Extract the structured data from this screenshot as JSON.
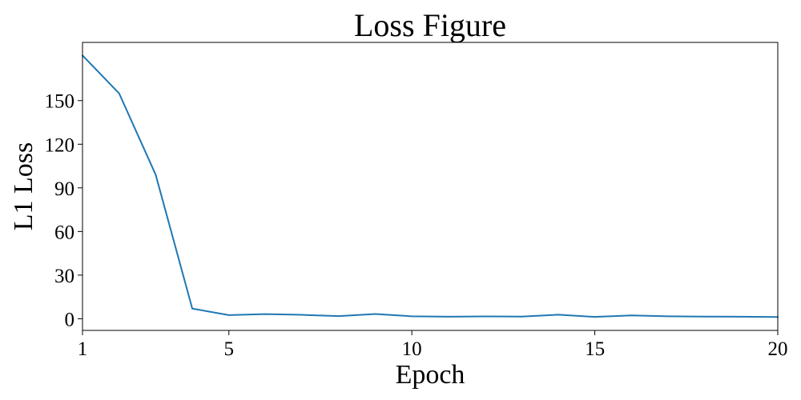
{
  "chart_data": {
    "type": "line",
    "title": "Loss Figure",
    "xlabel": "Epoch",
    "ylabel": "L1 Loss",
    "xlim": [
      1,
      20
    ],
    "ylim": [
      -8,
      190
    ],
    "xticks": [
      1,
      5,
      10,
      15,
      20
    ],
    "yticks": [
      0,
      30,
      60,
      90,
      120,
      150
    ],
    "grid": false,
    "series": [
      {
        "color": "#1f77b4",
        "x": [
          1,
          2,
          3,
          4,
          5,
          6,
          7,
          8,
          9,
          10,
          11,
          12,
          13,
          14,
          15,
          16,
          17,
          18,
          19,
          20
        ],
        "y": [
          181,
          155,
          99,
          7,
          2.5,
          3.2,
          2.7,
          1.8,
          3.3,
          1.7,
          1.4,
          1.6,
          1.5,
          2.8,
          1.3,
          2.3,
          1.7,
          1.5,
          1.4,
          1.2
        ]
      }
    ]
  }
}
